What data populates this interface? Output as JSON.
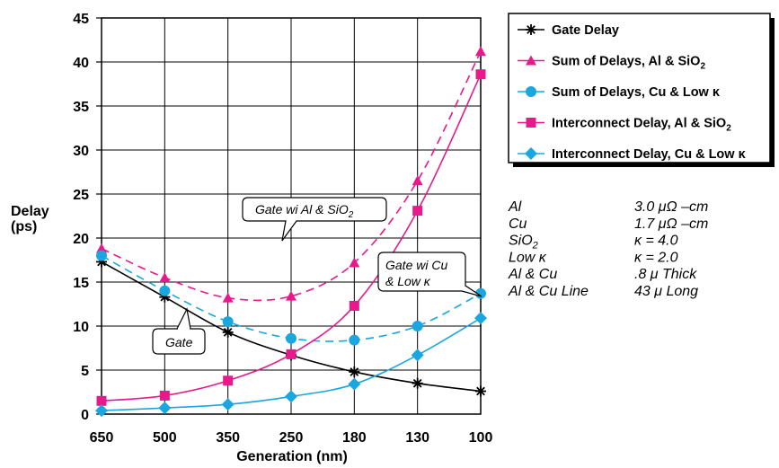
{
  "chart_data": {
    "type": "line",
    "title": "",
    "xlabel": "Generation (nm)",
    "ylabel_line1": "Delay",
    "ylabel_line2": "(ps)",
    "categories": [
      "650",
      "500",
      "350",
      "250",
      "180",
      "130",
      "100"
    ],
    "ylim": [
      0,
      45
    ],
    "yticks": [
      "0",
      "5",
      "10",
      "15",
      "20",
      "25",
      "30",
      "35",
      "40",
      "45"
    ],
    "grid": "vertical and horizontal",
    "legend_position": "top-right",
    "series": [
      {
        "name": "Gate Delay",
        "marker": "asterisk",
        "color": "#000000",
        "dashed": false,
        "values": [
          17.3,
          13.3,
          9.3,
          6.7,
          4.8,
          3.5,
          2.6
        ]
      },
      {
        "name": "Sum of Delays, Al & SiO2",
        "name_main": "Sum of Delays, Al & SiO",
        "name_sub": "2",
        "marker": "triangle",
        "color": "#e8198b",
        "dashed": true,
        "values": [
          18.8,
          15.5,
          13.2,
          13.4,
          17.2,
          26.5,
          41.2
        ]
      },
      {
        "name": "Sum of Delays, Cu & Low κ",
        "marker": "circle",
        "color": "#1aa7e0",
        "dashed": true,
        "values": [
          18.0,
          14.0,
          10.5,
          8.6,
          8.4,
          10.0,
          13.7
        ]
      },
      {
        "name": "Interconnect Delay, Al & SiO2",
        "name_main": "Interconnect Delay, Al & SiO",
        "name_sub": "2",
        "marker": "square",
        "color": "#e8198b",
        "dashed": false,
        "values": [
          1.5,
          2.1,
          3.8,
          6.8,
          12.3,
          23.1,
          38.6
        ]
      },
      {
        "name": "Interconnect Delay, Cu & Low κ",
        "marker": "diamond",
        "color": "#1aa7e0",
        "dashed": false,
        "values": [
          0.4,
          0.7,
          1.1,
          2.0,
          3.4,
          6.7,
          10.9
        ]
      }
    ],
    "annotations": [
      {
        "text_main": "Gate wi Al & SiO",
        "text_sub": "2"
      },
      {
        "text_line1": "Gate wi Cu",
        "text_line2": "& Low κ"
      },
      {
        "text": "Gate"
      }
    ],
    "materials": [
      {
        "label": "Al",
        "value": "3.0 μΩ –cm"
      },
      {
        "label": "Cu",
        "value": "1.7 μΩ –cm"
      },
      {
        "label_main": "SiO",
        "label_sub": "2",
        "value": "κ = 4.0"
      },
      {
        "label": "Low κ",
        "value": "κ = 2.0"
      },
      {
        "label": "Al & Cu",
        "value": ".8 μ Thick"
      },
      {
        "label": "Al & Cu Line",
        "value": "43 μ Long"
      }
    ]
  }
}
